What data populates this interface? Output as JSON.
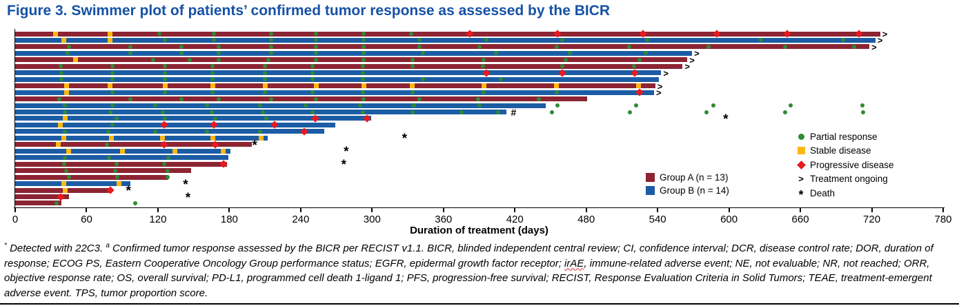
{
  "title": "Figure 3. Swimmer plot of patients’ confirmed tumor response as assessed by the BICR",
  "colors": {
    "title_blue": "#1652A5",
    "group_a": "#8C2433",
    "group_b": "#1C5CA5",
    "partial_response_green": "#2E8B33",
    "stable_disease_yellow": "#FDB714",
    "progressive_disease_red": "#E8191F",
    "axis_black": "#000000"
  },
  "chart_data": {
    "type": "swimmer",
    "xlabel": "Duration of treatment (days)",
    "axis": {
      "min": 0,
      "max": 780,
      "step": 60,
      "tick_labels": [
        "0",
        "60",
        "120",
        "180",
        "240",
        "300",
        "360",
        "420",
        "480",
        "540",
        "600",
        "660",
        "720",
        "780"
      ]
    },
    "grid": false,
    "legend_markers": {
      "position": "inside-right",
      "items": [
        {
          "symbol": "circle",
          "label": "Partial response"
        },
        {
          "symbol": "square",
          "label": "Stable disease"
        },
        {
          "symbol": "diamond",
          "label": "Progressive disease"
        },
        {
          "symbol": "gt",
          "label": "Treatment ongoing"
        },
        {
          "symbol": "asterisk",
          "label": "Death"
        }
      ]
    },
    "legend_groups": {
      "position": "inside-right-lower",
      "items": [
        {
          "group": "A",
          "label": "Group A (n = 13)"
        },
        {
          "group": "B",
          "label": "Group B (n = 14)"
        }
      ]
    },
    "marker_types": {
      "pr": "partial response",
      "sd": "stable disease",
      "pd": "progressive disease",
      "death": "death",
      "hash": "censor/annotation #"
    },
    "rows": [
      {
        "group": "A",
        "end": 727,
        "ongoing": true,
        "markers": [
          [
            "sd",
            34
          ],
          [
            "sd",
            80
          ],
          [
            "pr",
            121
          ],
          [
            "pr",
            167
          ],
          [
            "pr",
            215
          ],
          [
            "pr",
            253
          ],
          [
            "pr",
            293
          ],
          [
            "pr",
            333
          ],
          [
            "pd",
            382
          ],
          [
            "pd",
            456
          ],
          [
            "pd",
            528
          ],
          [
            "pd",
            590
          ],
          [
            "pd",
            649
          ],
          [
            "pd",
            709
          ]
        ]
      },
      {
        "group": "B",
        "end": 723,
        "ongoing": true,
        "markers": [
          [
            "sd",
            41
          ],
          [
            "sd",
            80
          ],
          [
            "pr",
            126
          ],
          [
            "pr",
            167
          ],
          [
            "pr",
            215
          ],
          [
            "pr",
            253
          ],
          [
            "pr",
            293
          ],
          [
            "pr",
            340
          ],
          [
            "pr",
            396
          ],
          [
            "pr",
            460
          ],
          [
            "pr",
            531
          ],
          [
            "pr",
            627
          ],
          [
            "pr",
            696
          ]
        ]
      },
      {
        "group": "A",
        "end": 718,
        "ongoing": true,
        "markers": [
          [
            "pr",
            45
          ],
          [
            "pr",
            97
          ],
          [
            "pr",
            140
          ],
          [
            "pr",
            171
          ],
          [
            "pr",
            215
          ],
          [
            "pr",
            253
          ],
          [
            "pr",
            293
          ],
          [
            "pr",
            340
          ],
          [
            "pr",
            390
          ],
          [
            "pr",
            455
          ],
          [
            "pr",
            516
          ],
          [
            "pr",
            583
          ],
          [
            "pr",
            647
          ],
          [
            "pr",
            705
          ]
        ]
      },
      {
        "group": "B",
        "end": 569,
        "ongoing": true,
        "markers": [
          [
            "pr",
            44
          ],
          [
            "pr",
            97
          ],
          [
            "pr",
            140
          ],
          [
            "pr",
            171
          ],
          [
            "pr",
            215
          ],
          [
            "pr",
            253
          ],
          [
            "pr",
            293
          ],
          [
            "pr",
            343
          ],
          [
            "pr",
            404
          ],
          [
            "pr",
            466
          ],
          [
            "pr",
            530
          ]
        ]
      },
      {
        "group": "A",
        "end": 565,
        "ongoing": true,
        "markers": [
          [
            "sd",
            51
          ],
          [
            "pr",
            116
          ],
          [
            "pr",
            147
          ],
          [
            "pr",
            171
          ],
          [
            "pr",
            213
          ],
          [
            "pr",
            253
          ],
          [
            "pr",
            293
          ],
          [
            "pr",
            334
          ],
          [
            "pr",
            394
          ],
          [
            "pr",
            463
          ],
          [
            "pr",
            525
          ]
        ]
      },
      {
        "group": "A",
        "end": 561,
        "ongoing": true,
        "markers": [
          [
            "pr",
            38
          ],
          [
            "pr",
            82
          ],
          [
            "pr",
            126
          ],
          [
            "pr",
            166
          ],
          [
            "pr",
            210
          ],
          [
            "pr",
            250
          ],
          [
            "pr",
            292
          ],
          [
            "pr",
            334
          ],
          [
            "pr",
            393
          ],
          [
            "pr",
            460
          ],
          [
            "pr",
            520
          ]
        ]
      },
      {
        "group": "B",
        "end": 543,
        "ongoing": true,
        "markers": [
          [
            "pr",
            39
          ],
          [
            "pr",
            82
          ],
          [
            "pr",
            126
          ],
          [
            "pr",
            166
          ],
          [
            "pr",
            210
          ],
          [
            "pr",
            250
          ],
          [
            "pr",
            292
          ],
          [
            "pd",
            396
          ],
          [
            "pd",
            460
          ],
          [
            "pd",
            521
          ]
        ]
      },
      {
        "group": "B",
        "end": 541,
        "ongoing": false,
        "markers": [
          [
            "pr",
            39
          ],
          [
            "pr",
            82
          ],
          [
            "pr",
            126
          ],
          [
            "pr",
            166
          ],
          [
            "pr",
            210
          ],
          [
            "pr",
            250
          ],
          [
            "pr",
            292
          ],
          [
            "pr",
            343
          ],
          [
            "pr",
            408
          ]
        ]
      },
      {
        "group": "A",
        "end": 538,
        "ongoing": true,
        "markers": [
          [
            "sd",
            43
          ],
          [
            "sd",
            80
          ],
          [
            "sd",
            126
          ],
          [
            "sd",
            166
          ],
          [
            "sd",
            210
          ],
          [
            "sd",
            253
          ],
          [
            "sd",
            293
          ],
          [
            "sd",
            334
          ],
          [
            "sd",
            394
          ],
          [
            "sd",
            455
          ],
          [
            "sd",
            524
          ]
        ]
      },
      {
        "group": "B",
        "end": 537,
        "ongoing": true,
        "markers": [
          [
            "sd",
            43
          ],
          [
            "pr",
            82
          ],
          [
            "pr",
            126
          ],
          [
            "pr",
            166
          ],
          [
            "pr",
            210
          ],
          [
            "pr",
            250
          ],
          [
            "pr",
            292
          ],
          [
            "pr",
            334
          ],
          [
            "pr",
            394
          ],
          [
            "pr",
            455
          ],
          [
            "pd",
            525
          ]
        ]
      },
      {
        "group": "A",
        "end": 481,
        "ongoing": false,
        "markers": [
          [
            "pr",
            37
          ],
          [
            "pr",
            97
          ],
          [
            "pr",
            140
          ],
          [
            "pr",
            171
          ],
          [
            "pr",
            215
          ],
          [
            "pr",
            253
          ],
          [
            "pr",
            293
          ],
          [
            "pr",
            340
          ],
          [
            "pr",
            389
          ],
          [
            "pr",
            440
          ]
        ]
      },
      {
        "group": "B",
        "end": 446,
        "ongoing": false,
        "markers": [
          [
            "pr",
            42
          ],
          [
            "pr",
            82
          ],
          [
            "pr",
            118
          ],
          [
            "pr",
            161
          ],
          [
            "pr",
            206
          ],
          [
            "pr",
            244
          ],
          [
            "pr",
            290
          ],
          [
            "pr",
            335
          ],
          [
            "pr",
            390
          ],
          [
            "pr",
            456
          ],
          [
            "pr",
            522
          ],
          [
            "pr",
            587
          ],
          [
            "pr",
            652
          ],
          [
            "pr",
            712
          ]
        ]
      },
      {
        "group": "B",
        "end": 413,
        "ongoing": false,
        "markers": [
          [
            "pr",
            42
          ],
          [
            "pr",
            80
          ],
          [
            "pr",
            124
          ],
          [
            "pr",
            165
          ],
          [
            "pr",
            208
          ],
          [
            "pr",
            250
          ],
          [
            "pr",
            292
          ],
          [
            "pr",
            334
          ],
          [
            "pr",
            375
          ],
          [
            "pr",
            406
          ],
          [
            "hash",
            419
          ],
          [
            "pr",
            451
          ],
          [
            "pr",
            517
          ],
          [
            "pr",
            581
          ],
          [
            "pr",
            647
          ],
          [
            "pr",
            713
          ]
        ]
      },
      {
        "group": "B",
        "end": 299,
        "ongoing": false,
        "markers": [
          [
            "sd",
            42
          ],
          [
            "pr",
            85
          ],
          [
            "pr",
            126
          ],
          [
            "pr",
            168
          ],
          [
            "pr",
            211
          ],
          [
            "pd",
            252
          ],
          [
            "pd",
            296
          ],
          [
            "death",
            598
          ]
        ]
      },
      {
        "group": "B",
        "end": 269,
        "ongoing": false,
        "markers": [
          [
            "sd",
            38
          ],
          [
            "pr",
            82
          ],
          [
            "pd",
            125
          ],
          [
            "pd",
            167
          ],
          [
            "pd",
            218
          ]
        ]
      },
      {
        "group": "B",
        "end": 260,
        "ongoing": false,
        "markers": [
          [
            "pr",
            42
          ],
          [
            "pr",
            78
          ],
          [
            "pr",
            118
          ],
          [
            "pr",
            161
          ],
          [
            "pr",
            206
          ],
          [
            "pd",
            243
          ]
        ]
      },
      {
        "group": "B",
        "end": 212,
        "ongoing": false,
        "markers": [
          [
            "sd",
            41
          ],
          [
            "sd",
            81
          ],
          [
            "sd",
            124
          ],
          [
            "sd",
            166
          ],
          [
            "sd",
            207
          ],
          [
            "death",
            328
          ]
        ]
      },
      {
        "group": "A",
        "end": 199,
        "ongoing": false,
        "markers": [
          [
            "sd",
            36
          ],
          [
            "pr",
            77
          ],
          [
            "pd",
            125
          ],
          [
            "pd",
            168
          ],
          [
            "death",
            202
          ]
        ]
      },
      {
        "group": "B",
        "end": 181,
        "ongoing": false,
        "markers": [
          [
            "sd",
            45
          ],
          [
            "sd",
            90
          ],
          [
            "sd",
            134
          ],
          [
            "sd",
            175
          ],
          [
            "death",
            279
          ]
        ]
      },
      {
        "group": "B",
        "end": 179,
        "ongoing": false,
        "markers": [
          [
            "pr",
            42
          ],
          [
            "pr",
            79
          ],
          [
            "pr",
            129
          ]
        ]
      },
      {
        "group": "A",
        "end": 178,
        "ongoing": false,
        "markers": [
          [
            "pr",
            41
          ],
          [
            "pr",
            85
          ],
          [
            "pr",
            125
          ],
          [
            "pd",
            175
          ],
          [
            "death",
            277
          ]
        ]
      },
      {
        "group": "A",
        "end": 148,
        "ongoing": false,
        "markers": [
          [
            "pr",
            43
          ],
          [
            "pr",
            84
          ],
          [
            "pr",
            128
          ]
        ]
      },
      {
        "group": "A",
        "end": 129,
        "ongoing": false,
        "markers": [
          [
            "pr",
            45
          ],
          [
            "pr",
            86
          ],
          [
            "pr",
            128
          ]
        ]
      },
      {
        "group": "B",
        "end": 97,
        "ongoing": false,
        "markers": [
          [
            "sd",
            41
          ],
          [
            "sd",
            87
          ],
          [
            "death",
            144
          ]
        ]
      },
      {
        "group": "A",
        "end": 81,
        "ongoing": false,
        "markers": [
          [
            "sd",
            42
          ],
          [
            "pd",
            80
          ],
          [
            "death",
            96
          ]
        ]
      },
      {
        "group": "A",
        "end": 45,
        "ongoing": false,
        "markers": [
          [
            "pd",
            38
          ],
          [
            "death",
            146
          ]
        ]
      },
      {
        "group": "A",
        "end": 39,
        "ongoing": false,
        "markers": [
          [
            "pr",
            35
          ],
          [
            "pr",
            101
          ]
        ]
      }
    ]
  },
  "footnote_segments": [
    {
      "text": "*",
      "sup": true
    },
    {
      "text": " Detected with 22C3. ",
      "sup": false
    },
    {
      "text": "a",
      "sup": true
    },
    {
      "text": " Confirmed tumor response assessed by the BICR per RECIST v1.1. BICR, blinded independent central review; CI, confidence interval; DCR, disease control rate; DOR, duration of response; ECOG PS, Eastern Cooperative Oncology Group performance status; EGFR, epidermal growth factor receptor; ",
      "sup": false
    },
    {
      "text": "irAE",
      "sup": false,
      "wavy": true
    },
    {
      "text": ", immune-related adverse event; NE, not evaluable; NR, not reached; ORR, objective response rate; OS, overall survival; PD-L1, programmed cell death 1-ligand 1; PFS, progression-free survival; RECIST, Response Evaluation Criteria in Solid Tumors; TEAE, treatment-emergent adverse event. TPS, tumor proportion score.",
      "sup": false
    }
  ]
}
